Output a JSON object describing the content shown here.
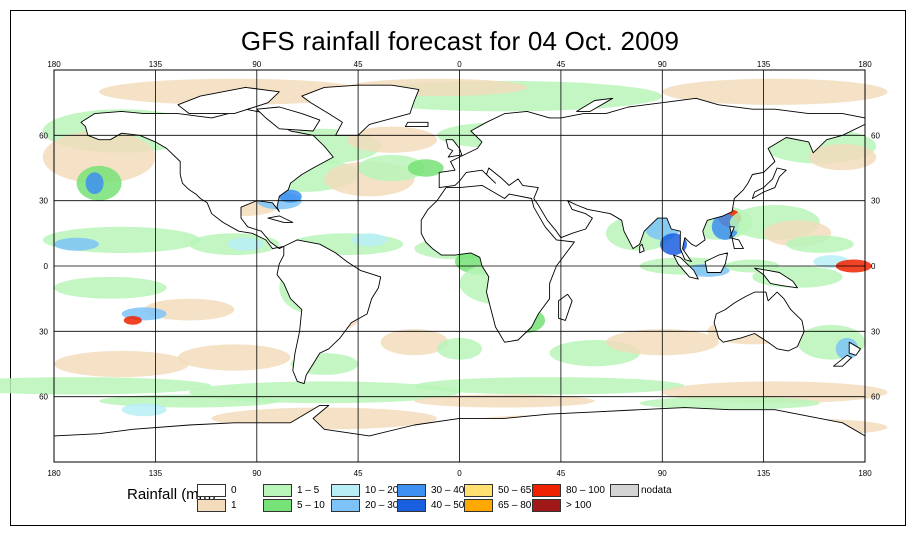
{
  "title": "GFS rainfall forecast for 04 Oct. 2009",
  "map": {
    "projection": "equirectangular",
    "lon_range": [
      -180,
      180
    ],
    "lat_range": [
      -90,
      90
    ],
    "grid_lines_lon": [
      -180,
      -135,
      -90,
      -45,
      0,
      45,
      90,
      135,
      180
    ],
    "grid_lines_lat": [
      -60,
      -30,
      0,
      30,
      60
    ],
    "lon_tick_labels": [
      "180",
      "135",
      "90",
      "45",
      "0",
      "45",
      "90",
      "135",
      "180"
    ],
    "lat_tick_labels": [
      "60",
      "30",
      "0",
      "30",
      "60"
    ],
    "background_color": "#ffffff",
    "coastline_color": "#000000"
  },
  "legend": {
    "title": "Rainfall (mm)",
    "items": [
      {
        "label": "0",
        "color": "#ffffff"
      },
      {
        "label": "1",
        "color": "#f2dcbc"
      },
      {
        "label": "1 – 5",
        "color": "#b9f5b9"
      },
      {
        "label": "5 – 10",
        "color": "#77e277"
      },
      {
        "label": "10 – 20",
        "color": "#b8eff7"
      },
      {
        "label": "20 – 30",
        "color": "#7dc3f7"
      },
      {
        "label": "30 – 40",
        "color": "#3d8ff0"
      },
      {
        "label": "40 – 50",
        "color": "#1a5fe0"
      },
      {
        "label": "50 – 65",
        "color": "#ffe070"
      },
      {
        "label": "65 – 80",
        "color": "#ffa800"
      },
      {
        "label": "80 – 100",
        "color": "#ee2200"
      },
      {
        "label": "> 100",
        "color": "#a01818"
      },
      {
        "label": "nodata",
        "color": "#d4d4d4"
      }
    ]
  }
}
